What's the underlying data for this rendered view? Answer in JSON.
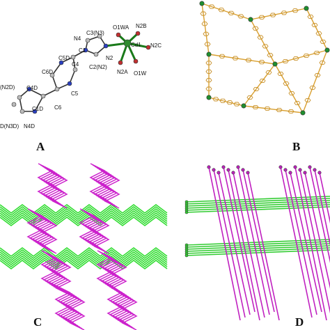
{
  "panels": [
    {
      "label": "A",
      "atom_labels": [
        "O1WA",
        "N2B",
        "C3(N3)",
        "Cd1",
        "N2C",
        "N4",
        "C5D",
        "C1",
        "N2",
        "C6D",
        "C4",
        "C2(N2)",
        "N2A",
        "O1W",
        "C4D",
        "C5",
        "(N2D)",
        "C1D",
        "C6",
        "D(N3D)",
        "N4D"
      ]
    },
    {
      "label": "B"
    },
    {
      "label": "C"
    },
    {
      "label": "D"
    }
  ]
}
